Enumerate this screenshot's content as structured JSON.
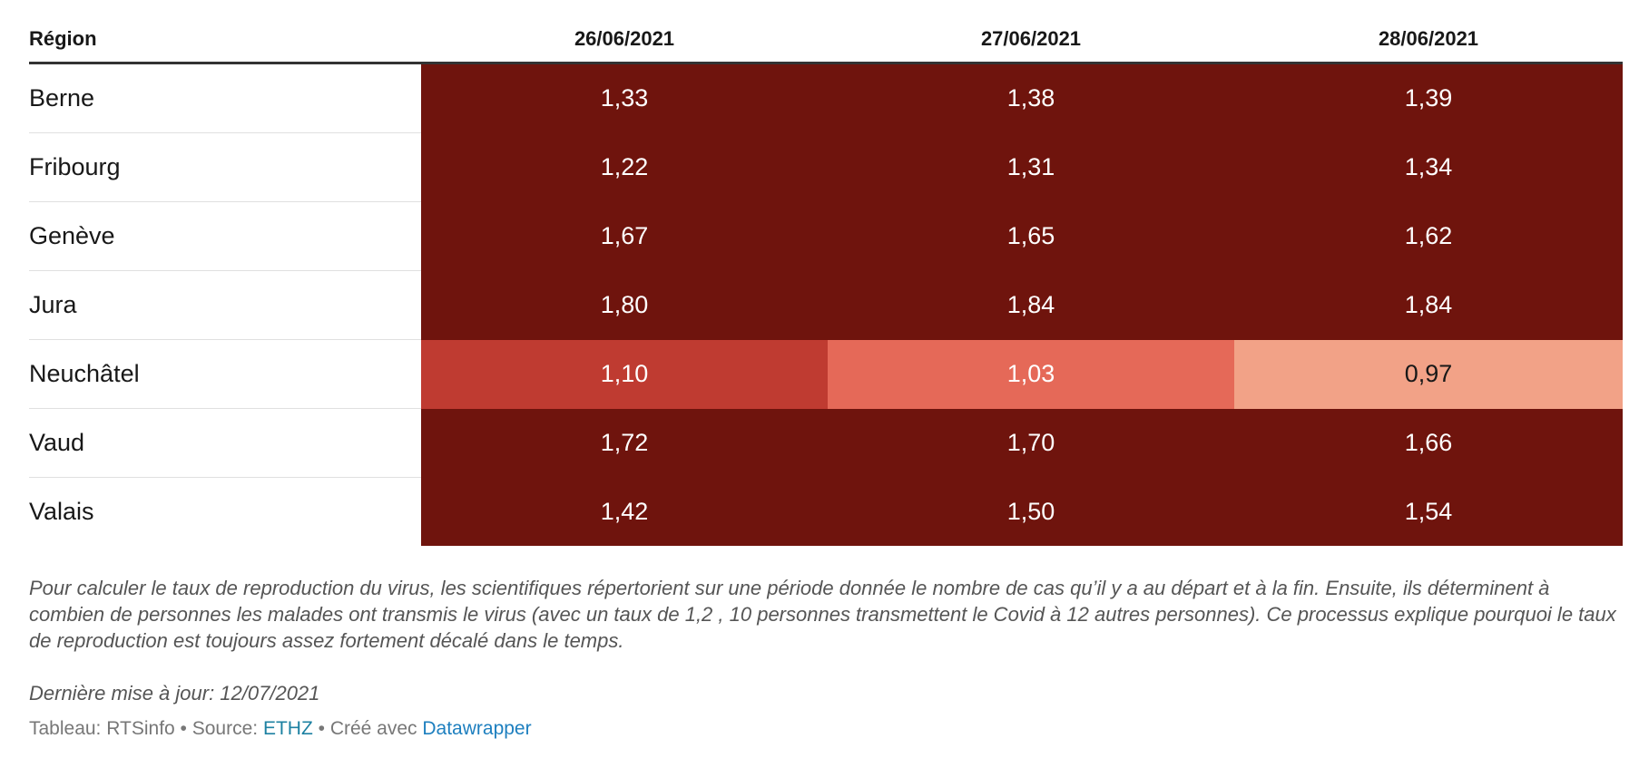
{
  "chart_data": {
    "type": "table",
    "columns": [
      "Région",
      "26/06/2021",
      "27/06/2021",
      "28/06/2021"
    ],
    "rows": [
      {
        "region": "Berne",
        "values": [
          "1,33",
          "1,38",
          "1,39"
        ]
      },
      {
        "region": "Fribourg",
        "values": [
          "1,22",
          "1,31",
          "1,34"
        ]
      },
      {
        "region": "Genève",
        "values": [
          "1,67",
          "1,65",
          "1,62"
        ]
      },
      {
        "region": "Jura",
        "values": [
          "1,80",
          "1,84",
          "1,84"
        ]
      },
      {
        "region": "Neuchâtel",
        "values": [
          "1,10",
          "1,03",
          "0,97"
        ]
      },
      {
        "region": "Vaud",
        "values": [
          "1,72",
          "1,70",
          "1,66"
        ]
      },
      {
        "region": "Valais",
        "values": [
          "1,42",
          "1,50",
          "1,54"
        ]
      }
    ],
    "colors": {
      "very_high": "#6f140d",
      "high": "#bf3b31",
      "medium": "#e56958",
      "low": "#f2a287",
      "dark_text": "#181818",
      "light_text": "#ffffff"
    }
  },
  "notes": "Pour calculer le taux de reproduction du virus, les scientifiques répertorient sur une période donnée le nombre de cas qu’il y a au départ et à la fin. Ensuite, ils déterminent à combien de personnes les malades ont transmis le virus (avec un taux de 1,2 , 10 personnes transmettent le Covid à 12 autres personnes). Ce processus explique pourquoi le taux de reproduction est toujours assez fortement décalé dans le temps.",
  "updated": "Dernière mise à jour: 12/07/2021",
  "footer": {
    "table_label": "Tableau: RTSinfo",
    "separator": " • ",
    "source_label": "Source: ",
    "source_link": "ETHZ",
    "created_label": "Créé avec ",
    "created_link": "Datawrapper"
  }
}
